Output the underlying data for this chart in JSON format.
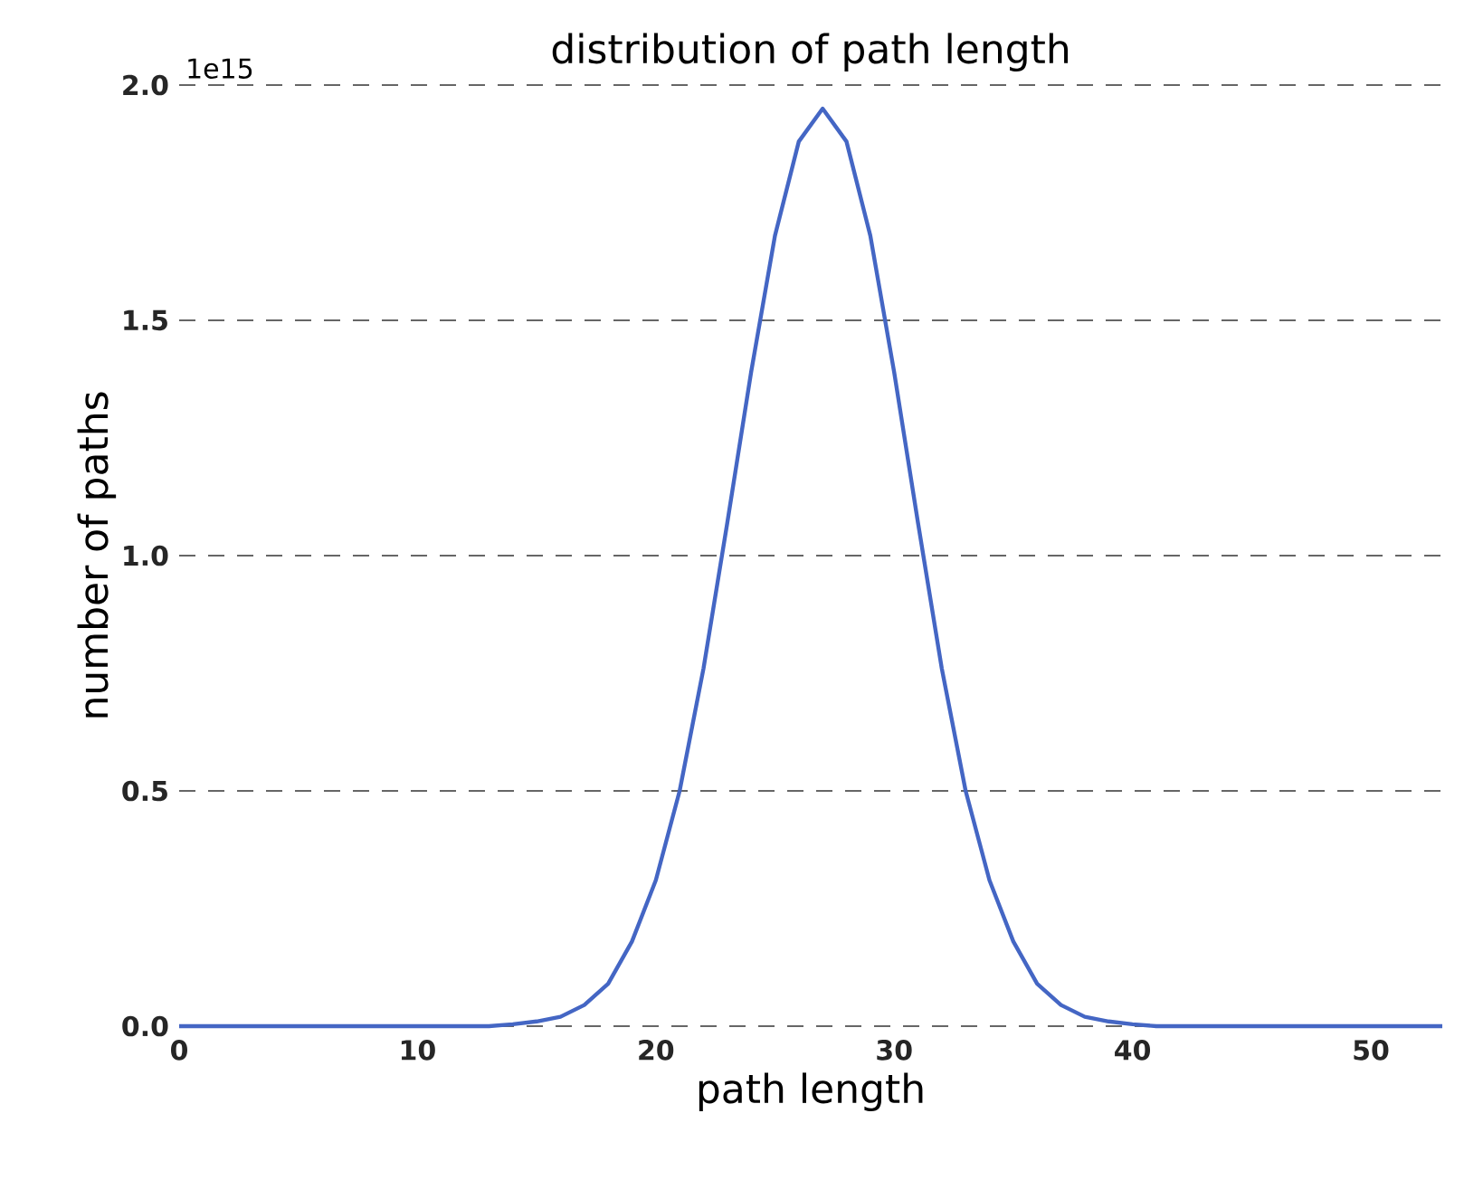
{
  "chart_data": {
    "type": "line",
    "title": "distribution of path length",
    "xlabel": "path length",
    "ylabel": "number of paths",
    "x": [
      0,
      1,
      2,
      3,
      4,
      5,
      6,
      7,
      8,
      9,
      10,
      11,
      12,
      13,
      14,
      15,
      16,
      17,
      18,
      19,
      20,
      21,
      22,
      23,
      24,
      25,
      26,
      27,
      28,
      29,
      30,
      31,
      32,
      33,
      34,
      35,
      36,
      37,
      38,
      39,
      40,
      41,
      42,
      43,
      44,
      45,
      46,
      47,
      48,
      49,
      50,
      51,
      52,
      53
    ],
    "series": [
      {
        "color": "#4466c4",
        "values": [
          0,
          0,
          0,
          0,
          0,
          0,
          0,
          0,
          0,
          0,
          0,
          0,
          0,
          0,
          0.004,
          0.01,
          0.02,
          0.045,
          0.09,
          0.18,
          0.31,
          0.5,
          0.76,
          1.07,
          1.39,
          1.68,
          1.88,
          1.95,
          1.88,
          1.68,
          1.39,
          1.07,
          0.76,
          0.5,
          0.31,
          0.18,
          0.09,
          0.045,
          0.02,
          0.01,
          0.004,
          0,
          0,
          0,
          0,
          0,
          0,
          0,
          0,
          0,
          0,
          0,
          0,
          0
        ]
      }
    ],
    "xlim": [
      0,
      53
    ],
    "ylim": [
      0,
      2.0
    ],
    "xticks": [
      0,
      10,
      20,
      30,
      40,
      50
    ],
    "yticks": [
      {
        "value": 0,
        "label": "0.0"
      },
      0.5,
      {
        "value": 1.0,
        "label": "1.0"
      },
      1.5,
      {
        "value": 2.0,
        "label": "2.0"
      }
    ],
    "grid": "y",
    "annotations": [
      "1e15"
    ]
  }
}
